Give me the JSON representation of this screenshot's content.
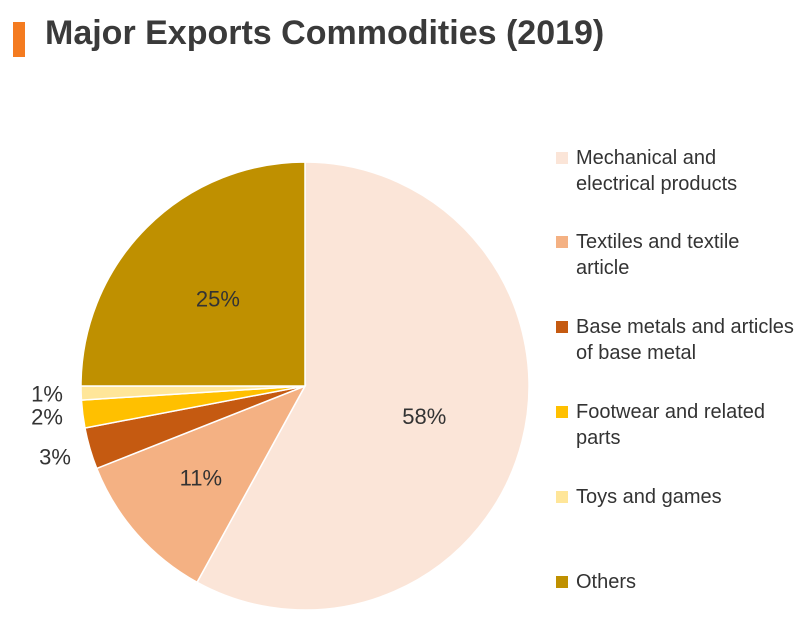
{
  "title": "Major Exports Commodities (2019)",
  "chart_data": {
    "type": "pie",
    "title": "Major Exports Commodities (2019)",
    "slices": [
      {
        "name": "Mechanical and electrical products",
        "value": 58,
        "label": "58%",
        "color": "#fbe5d8"
      },
      {
        "name": "Textiles and textile article",
        "value": 11,
        "label": "11%",
        "color": "#f4b183"
      },
      {
        "name": "Base metals and articles of base metal",
        "value": 3,
        "label": "3%",
        "color": "#c55a11"
      },
      {
        "name": "Footwear and related parts",
        "value": 2,
        "label": "2%",
        "color": "#ffc000"
      },
      {
        "name": "Toys and games",
        "value": 1,
        "label": "1%",
        "color": "#ffe699"
      },
      {
        "name": "Others",
        "value": 25,
        "label": "25%",
        "color": "#bf9000"
      }
    ],
    "legend_position": "right"
  },
  "colors": {
    "title_accent": "#f47b20"
  }
}
